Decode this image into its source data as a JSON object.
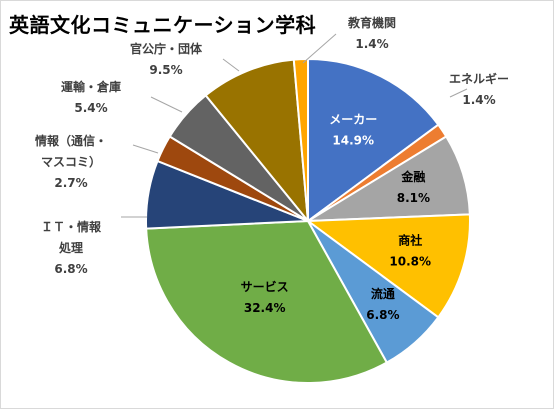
{
  "chart_data": {
    "type": "pie",
    "title": "英語文化コミュニケーション学科",
    "unit": "%",
    "start_angle_deg": 0,
    "direction": "clockwise",
    "slices": [
      {
        "name": "メーカー",
        "label_lines": [
          "メーカー"
        ],
        "value": 14.9,
        "value_label": "14.9%",
        "color": "#4472c4",
        "label_mode": "inside",
        "label_color": "#ffffff"
      },
      {
        "name": "エネルギー",
        "label_lines": [
          "エネルギー"
        ],
        "value": 1.4,
        "value_label": "1.4%",
        "color": "#ed7d31",
        "label_mode": "outside",
        "label_color": "#404040"
      },
      {
        "name": "金融",
        "label_lines": [
          "金融"
        ],
        "value": 8.1,
        "value_label": "8.1%",
        "color": "#a5a5a5",
        "label_mode": "inside",
        "label_color": "#000000"
      },
      {
        "name": "商社",
        "label_lines": [
          "商社"
        ],
        "value": 10.8,
        "value_label": "10.8%",
        "color": "#ffc000",
        "label_mode": "inside",
        "label_color": "#000000"
      },
      {
        "name": "流通",
        "label_lines": [
          "流通"
        ],
        "value": 6.8,
        "value_label": "6.8%",
        "color": "#5b9bd5",
        "label_mode": "inside",
        "label_color": "#000000"
      },
      {
        "name": "サービス",
        "label_lines": [
          "サービス"
        ],
        "value": 32.4,
        "value_label": "32.4%",
        "color": "#70ad47",
        "label_mode": "inside",
        "label_color": "#000000"
      },
      {
        "name": "ＩＴ・情報処理",
        "label_lines": [
          "ＩＴ・情報",
          "処理"
        ],
        "value": 6.8,
        "value_label": "6.8%",
        "color": "#264478",
        "label_mode": "outside",
        "label_color": "#404040"
      },
      {
        "name": "情報（通信・マスコミ）",
        "label_lines": [
          "情報（通信・",
          "マスコミ）"
        ],
        "value": 2.7,
        "value_label": "2.7%",
        "color": "#9e480e",
        "label_mode": "outside",
        "label_color": "#404040"
      },
      {
        "name": "運輸・倉庫",
        "label_lines": [
          "運輸・倉庫"
        ],
        "value": 5.4,
        "value_label": "5.4%",
        "color": "#636363",
        "label_mode": "outside",
        "label_color": "#404040"
      },
      {
        "name": "官公庁・団体",
        "label_lines": [
          "官公庁・団体"
        ],
        "value": 9.5,
        "value_label": "9.5%",
        "color": "#997300",
        "label_mode": "outside",
        "label_color": "#404040"
      },
      {
        "name": "教育機関",
        "label_lines": [
          "教育機関"
        ],
        "value": 1.4,
        "value_label": "1.4%",
        "color": "#ffa500",
        "label_mode": "outside",
        "label_color": "#404040"
      }
    ],
    "legend": "none"
  }
}
